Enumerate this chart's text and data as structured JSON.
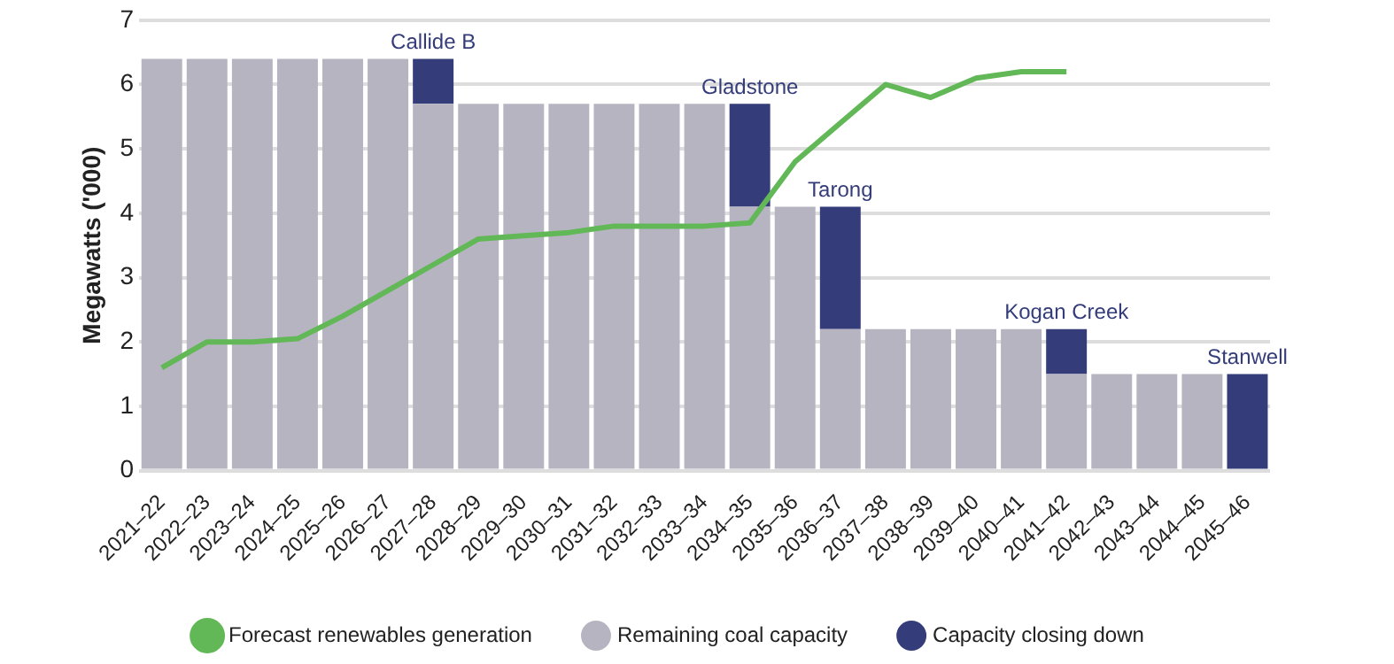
{
  "chart_data": {
    "type": "bar",
    "stacked": true,
    "ylabel": "Megawatts ('000)",
    "categories": [
      "2021–22",
      "2022–23",
      "2023–24",
      "2024–25",
      "2025–26",
      "2026–27",
      "2027–28",
      "2028–29",
      "2029–30",
      "2030–31",
      "2031–32",
      "2032–33",
      "2033–34",
      "2034–35",
      "2035–36",
      "2036–37",
      "2037–38",
      "2038–39",
      "2039–40",
      "2040–41",
      "2041–42",
      "2042–43",
      "2043–44",
      "2044–45",
      "2045–46"
    ],
    "series": [
      {
        "name": "Remaining coal capacity",
        "color": "#b7b4c1",
        "values": [
          6.4,
          6.4,
          6.4,
          6.4,
          6.4,
          6.4,
          5.7,
          5.7,
          5.7,
          5.7,
          5.7,
          5.7,
          5.7,
          4.1,
          4.1,
          2.2,
          2.2,
          2.2,
          2.2,
          2.2,
          1.5,
          1.5,
          1.5,
          1.5,
          0
        ]
      },
      {
        "name": "Capacity closing down",
        "color": "#343c7a",
        "values": [
          null,
          null,
          null,
          null,
          null,
          null,
          0.7,
          null,
          null,
          null,
          null,
          null,
          null,
          1.6,
          null,
          1.9,
          null,
          null,
          null,
          null,
          0.7,
          null,
          null,
          null,
          1.5
        ]
      },
      {
        "name": "Forecast renewables generation",
        "type": "line",
        "color": "#62b857",
        "values": [
          1.6,
          2.0,
          2.0,
          2.05,
          2.4,
          2.8,
          3.2,
          3.6,
          3.65,
          3.7,
          3.8,
          3.8,
          3.8,
          3.85,
          4.8,
          5.4,
          6.0,
          5.8,
          6.1,
          6.2,
          6.2,
          null,
          null,
          null,
          null
        ]
      }
    ],
    "ylim": [
      0,
      7
    ],
    "yticks": [
      0,
      1,
      2,
      3,
      4,
      5,
      6,
      7
    ],
    "grid": "y",
    "legend": "bottom",
    "marker": "none",
    "annotations": [
      {
        "text": "Callide B",
        "x": "2027–28",
        "y": 6.4
      },
      {
        "text": "Gladstone",
        "x": "2034–35",
        "y": 5.7
      },
      {
        "text": "Tarong",
        "x": "2036–37",
        "y": 4.1
      },
      {
        "text": "Kogan Creek",
        "x": "2041–42",
        "y": 2.2
      },
      {
        "text": "Stanwell",
        "x": "2045–46",
        "y": 1.5
      }
    ]
  }
}
